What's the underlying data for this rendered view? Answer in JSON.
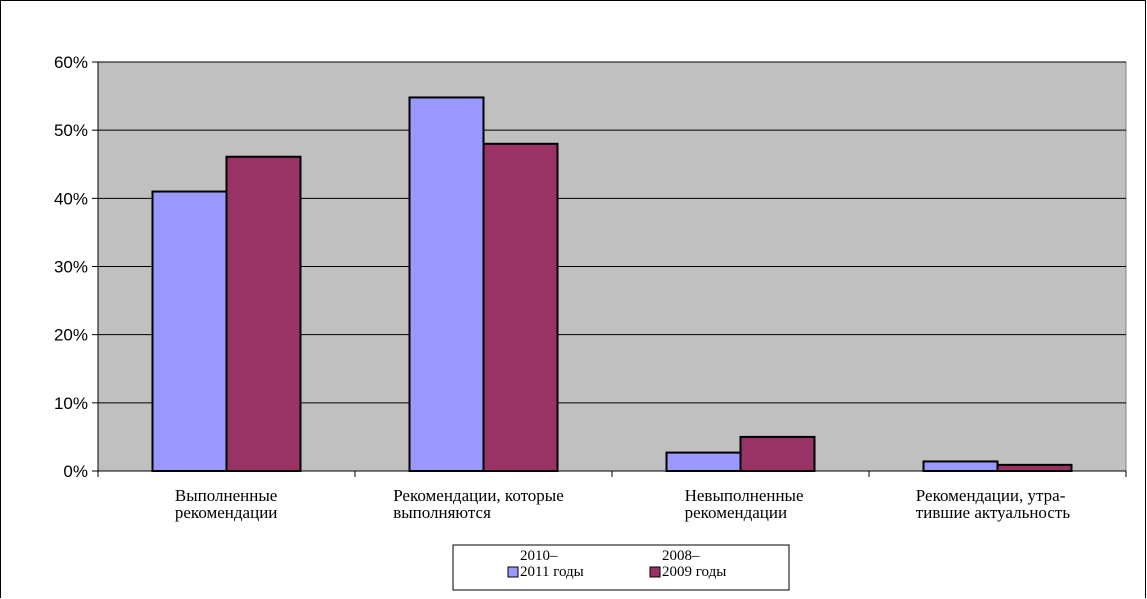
{
  "chart_data": {
    "type": "bar",
    "categories": [
      [
        "Выполненные",
        "рекомендации"
      ],
      [
        "Рекомендации, которые",
        "выполняются"
      ],
      [
        "Невыполненные",
        "рекомендации"
      ],
      [
        "Рекомендации, утра-",
        "тившие актуальность"
      ]
    ],
    "series": [
      {
        "name": [
          "2010–",
          "2011 годы"
        ],
        "values": [
          41,
          54.8,
          2.7,
          1.4
        ],
        "color": "#9999ff"
      },
      {
        "name": [
          "2008–",
          "2009 годы"
        ],
        "values": [
          46.1,
          48,
          5,
          0.9
        ],
        "color": "#993366"
      }
    ],
    "yticks": [
      "0%",
      "10%",
      "20%",
      "30%",
      "40%",
      "50%",
      "60%"
    ],
    "ylim": [
      0,
      60
    ],
    "grid": true,
    "plot_background": "#c0c0c0",
    "legend_position": "bottom"
  }
}
